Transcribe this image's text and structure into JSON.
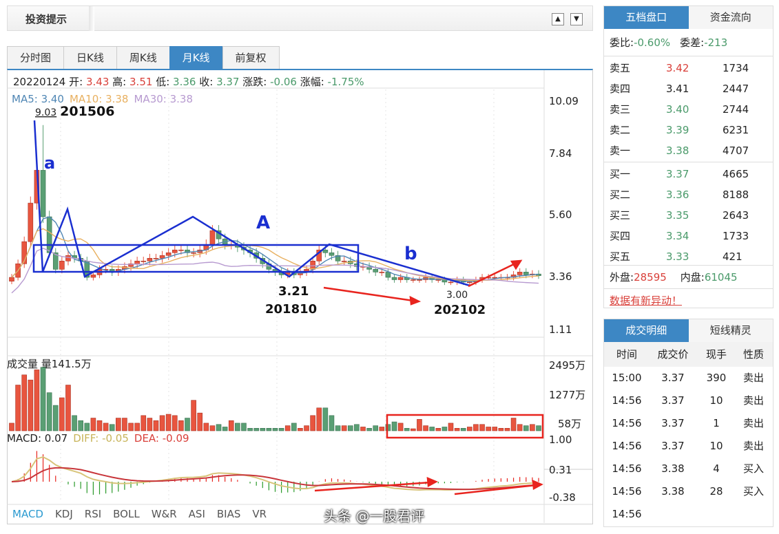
{
  "header": {
    "title": "投资提示",
    "up": "▲",
    "down": "▼"
  },
  "tabs": [
    "分时图",
    "日K线",
    "周K线",
    "月K线",
    "前复权"
  ],
  "active_tab": "月K线",
  "quote": {
    "date": "20220124",
    "open_label": "开:",
    "open": "3.43",
    "high_label": "高:",
    "high": "3.51",
    "low_label": "低:",
    "low": "3.36",
    "close_label": "收:",
    "close": "3.37",
    "chg_label": "涨跌:",
    "chg": "-0.06",
    "pct_label": "涨幅:",
    "pct": "-1.75%"
  },
  "ma": {
    "ma5": "MA5: 3.40",
    "ma10": "MA10: 3.38",
    "ma30": "MA30: 3.38"
  },
  "volume_label": "成交量 量141.5万",
  "macd_label": {
    "macd": "MACD: 0.07",
    "diff": "DIFF: -0.05",
    "dea": "DEA: -0.09"
  },
  "indicators": [
    "MACD",
    "KDJ",
    "RSI",
    "BOLL",
    "W&R",
    "ASI",
    "BIAS",
    "VR"
  ],
  "annotations": {
    "peak_value": "9.03",
    "peak_date": "201506",
    "a": "a",
    "A": "A",
    "b": "b",
    "low1_value": "3.21",
    "low1_date": "201810",
    "low2_value": "3.00",
    "low2_date": "202102"
  },
  "chart_data": {
    "type": "candlestick",
    "price_ticks": [
      "10.09",
      "7.84",
      "5.60",
      "3.36",
      "1.11"
    ],
    "volume_ticks": [
      "2495万",
      "1277万",
      "58万"
    ],
    "macd_ticks": [
      "1.00",
      "0.31",
      "-0.38"
    ],
    "closes": [
      3.3,
      3.8,
      4.6,
      6.0,
      7.2,
      5.5,
      4.2,
      3.6,
      3.9,
      4.1,
      4.0,
      3.9,
      3.3,
      3.4,
      3.6,
      3.6,
      3.5,
      3.6,
      3.7,
      3.8,
      3.9,
      3.9,
      4.0,
      4.0,
      4.1,
      4.2,
      4.3,
      4.3,
      4.2,
      4.2,
      4.3,
      4.5,
      5.0,
      4.7,
      4.5,
      4.5,
      4.4,
      4.3,
      4.2,
      4.0,
      3.8,
      3.6,
      3.5,
      3.4,
      3.5,
      3.4,
      3.5,
      3.6,
      3.9,
      4.3,
      4.2,
      4.1,
      3.9,
      3.9,
      3.8,
      3.7,
      3.7,
      3.6,
      3.5,
      3.5,
      3.3,
      3.2,
      3.3,
      3.2,
      3.2,
      3.2,
      3.3,
      3.2,
      3.2,
      3.1,
      3.1,
      3.2,
      3.1,
      3.1,
      3.2,
      3.3,
      3.3,
      3.3,
      3.3,
      3.3,
      3.4,
      3.5,
      3.4,
      3.43,
      3.37
    ],
    "volumes": [
      300,
      1800,
      2200,
      2000,
      2400,
      2500,
      1500,
      1000,
      1300,
      1800,
      600,
      400,
      300,
      500,
      400,
      300,
      250,
      500,
      500,
      300,
      300,
      600,
      500,
      400,
      600,
      650,
      600,
      400,
      500,
      1200,
      700,
      300,
      200,
      250,
      150,
      400,
      300,
      300,
      100,
      100,
      100,
      100,
      100,
      100,
      200,
      300,
      100,
      200,
      600,
      900,
      900,
      600,
      200,
      200,
      200,
      250,
      150,
      100,
      200,
      150,
      250,
      350,
      300,
      100,
      80,
      450,
      200,
      150,
      100,
      150,
      300,
      100,
      100,
      150,
      250,
      250,
      150,
      150,
      100,
      100,
      500,
      250,
      200,
      250,
      200
    ],
    "peak_high": 9.03,
    "colors": {
      "up": "#e8553f",
      "down": "#5a9f74",
      "ma5": "#4f86b4",
      "ma10": "#e8b060",
      "ma30": "#b79ad0",
      "diff": "#d8c47a",
      "dea": "#c8353a"
    }
  },
  "order_book": {
    "tabs": [
      "五档盘口",
      "资金流向"
    ],
    "wb_label": "委比:",
    "wb": "-0.60%",
    "wc_label": "委差:",
    "wc": "-213",
    "sells": [
      {
        "l": "卖五",
        "p": "3.42",
        "v": "1734",
        "c": "red"
      },
      {
        "l": "卖四",
        "p": "3.41",
        "v": "2447",
        "c": ""
      },
      {
        "l": "卖三",
        "p": "3.40",
        "v": "2744",
        "c": "green"
      },
      {
        "l": "卖二",
        "p": "3.39",
        "v": "6231",
        "c": "green"
      },
      {
        "l": "卖一",
        "p": "3.38",
        "v": "4707",
        "c": "green"
      }
    ],
    "buys": [
      {
        "l": "买一",
        "p": "3.37",
        "v": "4665",
        "c": "green"
      },
      {
        "l": "买二",
        "p": "3.36",
        "v": "8188",
        "c": "green"
      },
      {
        "l": "买三",
        "p": "3.35",
        "v": "2643",
        "c": "green"
      },
      {
        "l": "买四",
        "p": "3.34",
        "v": "1733",
        "c": "green"
      },
      {
        "l": "买五",
        "p": "3.33",
        "v": "421",
        "c": "green"
      }
    ],
    "outer_label": "外盘:",
    "outer": "28595",
    "inner_label": "内盘:",
    "inner": "61045",
    "alert": "数据有新异动！"
  },
  "trades": {
    "tabs": [
      "成交明细",
      "短线精灵"
    ],
    "headers": [
      "时间",
      "成交价",
      "现手",
      "性质"
    ],
    "rows": [
      [
        "15:00",
        "3.37",
        "390",
        "卖出"
      ],
      [
        "14:56",
        "3.37",
        "10",
        "卖出"
      ],
      [
        "14:56",
        "3.37",
        "1",
        "卖出"
      ],
      [
        "14:56",
        "3.37",
        "10",
        "卖出"
      ],
      [
        "14:56",
        "3.38",
        "4",
        "买入"
      ],
      [
        "14:56",
        "3.38",
        "28",
        "买入"
      ],
      [
        "14:56",
        "",
        "",
        ""
      ]
    ]
  },
  "watermark": "头条 @一股君评"
}
